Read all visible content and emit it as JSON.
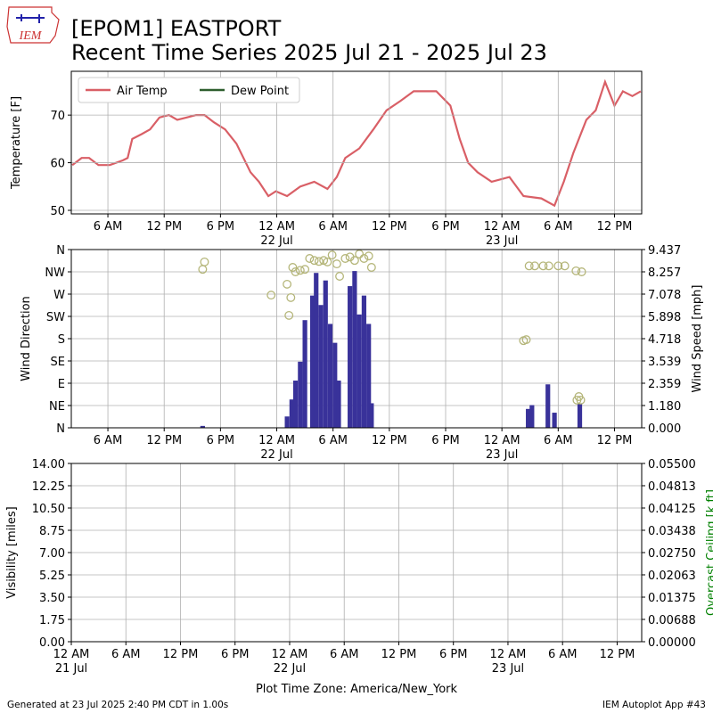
{
  "header": {
    "title": "[EPOM1] EASTPORT",
    "subtitle": "Recent Time Series 2025 Jul 21 - 2025 Jul 23",
    "logo": "IEM",
    "timezone": "Plot Time Zone: America/New_York",
    "generated": "Generated at 23 Jul 2025 2:40 PM CDT in 1.00s",
    "app": "IEM Autoplot App #43"
  },
  "chart_data": [
    {
      "type": "line",
      "ylabel": "Temperature [F]",
      "xlim": [
        2.1,
        62.9
      ],
      "ylim": [
        49.25,
        79.2
      ],
      "yticks": [
        50,
        60,
        70
      ],
      "xticks": [
        {
          "value": 6,
          "label": "6 AM"
        },
        {
          "value": 12,
          "label": "12 PM"
        },
        {
          "value": 18,
          "label": "6 PM"
        },
        {
          "value": 24,
          "label": "12 AM\n22 Jul"
        },
        {
          "value": 30,
          "label": "6 AM"
        },
        {
          "value": 36,
          "label": "12 PM"
        },
        {
          "value": 42,
          "label": "6 PM"
        },
        {
          "value": 48,
          "label": "12 AM\n23 Jul"
        },
        {
          "value": 54,
          "label": "6 AM"
        },
        {
          "value": 60,
          "label": "12 PM"
        }
      ],
      "grid": true,
      "legend": "upper left",
      "x": [
        2.2,
        3.2,
        4.0,
        5.0,
        6.2,
        7.6,
        8.1,
        8.6,
        9.6,
        10.5,
        11.5,
        12.5,
        13.4,
        14.4,
        15.4,
        16.3,
        17.3,
        18.5,
        19.7,
        21.2,
        22.1,
        23.1,
        23.9,
        25.1,
        26.5,
        28.0,
        29.4,
        30.4,
        31.3,
        32.8,
        34.3,
        35.7,
        37.2,
        38.6,
        39.6,
        41.0,
        42.5,
        43.5,
        44.4,
        45.4,
        46.9,
        48.8,
        50.3,
        52.2,
        53.6,
        54.6,
        55.6,
        57.0,
        58.0,
        59.0,
        60.0,
        60.9,
        61.9,
        62.8
      ],
      "series": [
        {
          "name": "Air Temp",
          "color": "#d95f66",
          "values": [
            59.5,
            61,
            61,
            59.5,
            59.5,
            60.5,
            61,
            65,
            66,
            67,
            69.5,
            70,
            69,
            69.5,
            70,
            70,
            68.5,
            67,
            64,
            58,
            56,
            53,
            54,
            53,
            55,
            56,
            54.5,
            57,
            61,
            63,
            67,
            71,
            73,
            75,
            75,
            75,
            72,
            65,
            60,
            58,
            56,
            57,
            53,
            52.5,
            51,
            56,
            62,
            69,
            71,
            77,
            72,
            75,
            74,
            75
          ]
        },
        {
          "name": "Dew Point",
          "color": "#2e5e2e",
          "values": [
            null,
            null,
            null,
            null,
            null,
            null,
            null,
            null,
            null,
            null,
            null,
            null,
            null,
            null,
            null,
            null,
            null,
            null,
            null,
            null,
            null,
            null,
            null,
            null,
            null,
            null,
            null,
            null,
            null,
            null,
            null,
            null,
            null,
            null,
            null,
            null,
            null,
            null,
            null,
            null,
            null,
            null,
            null,
            null,
            null,
            null,
            null,
            null,
            null,
            null,
            null,
            null,
            null,
            null
          ]
        }
      ]
    },
    {
      "type": "combo",
      "ylabel": "Wind Direction",
      "y2label": "Wind Speed [mph]",
      "xlim": [
        2.1,
        62.9
      ],
      "ylim": [
        0,
        360
      ],
      "yticks": [
        {
          "value": 0,
          "label": "N"
        },
        {
          "value": 45,
          "label": "NE"
        },
        {
          "value": 90,
          "label": "E"
        },
        {
          "value": 135,
          "label": "SE"
        },
        {
          "value": 180,
          "label": "S"
        },
        {
          "value": 225,
          "label": "SW"
        },
        {
          "value": 270,
          "label": "W"
        },
        {
          "value": 315,
          "label": "NW"
        },
        {
          "value": 360,
          "label": "N"
        }
      ],
      "y2lim": [
        0,
        9.437
      ],
      "y2ticks": [
        {
          "value": 0,
          "label": "0.000"
        },
        {
          "value": 1.18,
          "label": "1.180"
        },
        2.359,
        3.539,
        4.718,
        5.898,
        7.078,
        8.257,
        9.437
      ],
      "xticks": [
        {
          "value": 6,
          "label": "6 AM"
        },
        {
          "value": 12,
          "label": "12 PM"
        },
        {
          "value": 18,
          "label": "6 PM"
        },
        {
          "value": 24,
          "label": "12 AM\n22 Jul"
        },
        {
          "value": 30,
          "label": "6 AM"
        },
        {
          "value": 36,
          "label": "12 PM"
        },
        {
          "value": 42,
          "label": "6 PM"
        },
        {
          "value": 48,
          "label": "12 AM\n23 Jul"
        },
        {
          "value": 54,
          "label": "6 AM"
        },
        {
          "value": 60,
          "label": "12 PM"
        }
      ],
      "grid": true,
      "series": [
        {
          "kind": "bar",
          "axis": "y2",
          "color": "#39329a",
          "x": [
            16.1,
            25.1,
            25.6,
            26.0,
            26.5,
            27.0,
            27.8,
            28.2,
            28.7,
            29.2,
            29.7,
            30.2,
            30.6,
            31.8,
            32.3,
            32.8,
            33.3,
            33.8,
            34.1,
            50.8,
            51.2,
            52.9,
            53.6,
            56.3
          ],
          "values": [
            0.1,
            0.6,
            1.5,
            2.5,
            3.5,
            5.7,
            7,
            8.2,
            6.5,
            7.8,
            5.5,
            4.5,
            2.5,
            7.5,
            8.3,
            6,
            7,
            5.5,
            1.3,
            1.0,
            1.2,
            2.3,
            0.8,
            1.3
          ]
        },
        {
          "kind": "scatter",
          "axis": "y",
          "color": "#b5b67a",
          "x": [
            16.1,
            16.3,
            23.4,
            25.1,
            25.3,
            25.5,
            25.7,
            26.0,
            26.5,
            27.0,
            27.5,
            28.0,
            28.5,
            29.0,
            29.4,
            29.9,
            30.4,
            30.7,
            31.3,
            31.8,
            32.3,
            32.8,
            33.3,
            33.8,
            34.1,
            50.3,
            50.6,
            50.9,
            51.5,
            52.4,
            53.0,
            54.0,
            54.7,
            55.9,
            56.5,
            56.0,
            56.2,
            56.4
          ],
          "values": [
            320,
            335,
            268,
            290,
            227,
            263,
            324,
            315,
            318,
            320,
            342,
            338,
            336,
            338,
            335,
            349,
            331,
            306,
            342,
            345,
            338,
            351,
            342,
            347,
            324,
            176,
            178,
            327,
            327,
            327,
            327,
            327,
            327,
            317,
            315,
            56,
            63,
            56
          ]
        }
      ]
    },
    {
      "type": "line",
      "ylabel": "Visibility [miles]",
      "y2label": "Overcast Ceiling [k ft]",
      "y2color": "#008000",
      "xlim": [
        0,
        62.7
      ],
      "ylim": [
        0,
        14
      ],
      "yticks": [
        {
          "value": 0,
          "label": "0.00"
        },
        1.75,
        {
          "value": 3.5,
          "label": "3.50"
        },
        5.25,
        {
          "value": 7,
          "label": "7.00"
        },
        8.75,
        {
          "value": 10.5,
          "label": "10.50"
        },
        12.25,
        {
          "value": 14,
          "label": "14.00"
        }
      ],
      "y2lim": [
        0,
        0.055
      ],
      "y2ticks": [
        {
          "value": 0,
          "label": "0.00000"
        },
        0.00688,
        0.01375,
        0.02063,
        {
          "value": 0.0275,
          "label": "0.02750"
        },
        0.03438,
        0.04125,
        0.04813,
        {
          "value": 0.055,
          "label": "0.05500"
        }
      ],
      "xticks": [
        {
          "value": 0,
          "label": "12 AM\n21 Jul"
        },
        {
          "value": 6,
          "label": "6 AM"
        },
        {
          "value": 12,
          "label": "12 PM"
        },
        {
          "value": 18,
          "label": "6 PM"
        },
        {
          "value": 24,
          "label": "12 AM\n22 Jul"
        },
        {
          "value": 30,
          "label": "6 AM"
        },
        {
          "value": 36,
          "label": "12 PM"
        },
        {
          "value": 42,
          "label": "6 PM"
        },
        {
          "value": 48,
          "label": "12 AM\n23 Jul"
        },
        {
          "value": 54,
          "label": "6 AM"
        },
        {
          "value": 60,
          "label": "12 PM"
        }
      ],
      "grid": true,
      "series": []
    }
  ]
}
